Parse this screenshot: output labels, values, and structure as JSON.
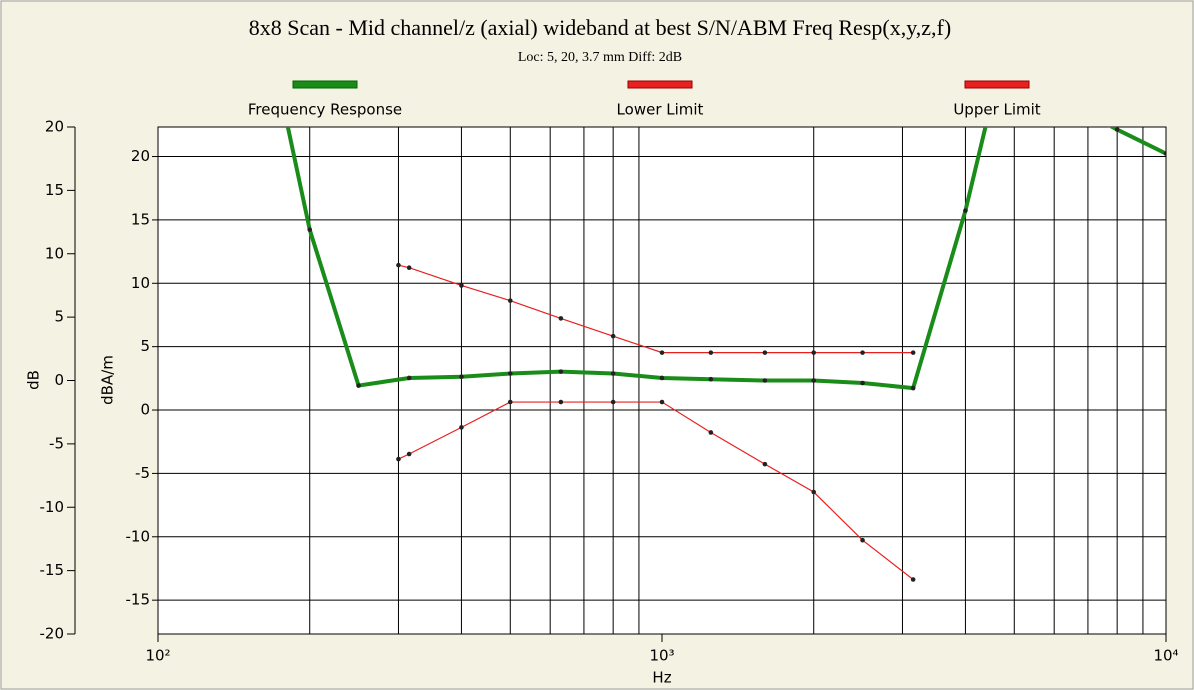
{
  "chart_data": {
    "type": "line",
    "title": "8x8 Scan - Mid channel/z (axial) wideband at best S/N/ABM Freq Resp(x,y,z,f)",
    "subtitle": "Loc: 5, 20, 3.7 mm Diff: 2dB",
    "x_label": "Hz",
    "y_label": "dB",
    "y2_label": "dBA/m",
    "log_x": true,
    "grid": true,
    "legend": "top",
    "xlim": [
      100,
      10000
    ],
    "xticks": [
      {
        "value": 100,
        "label": "10²"
      },
      {
        "value": 1000,
        "label": "10³"
      },
      {
        "value": 10000,
        "label": "10⁴"
      }
    ],
    "xminor": [
      200,
      300,
      400,
      500,
      600,
      700,
      800,
      900,
      2000,
      3000,
      4000,
      5000,
      6000,
      7000,
      8000,
      9000
    ],
    "ylim": [
      -20,
      20
    ],
    "yticks": [
      -20,
      -15,
      -10,
      -5,
      0,
      5,
      10,
      15,
      20
    ],
    "y2lim": [
      -17.67,
      22.33
    ],
    "y2ticks": [
      -15,
      -10,
      -5,
      0,
      5,
      10,
      15,
      20
    ],
    "series": [
      {
        "name": "Frequency Response",
        "color": "#1a8c1a",
        "x": [
          160,
          200,
          250,
          315,
          400,
          500,
          630,
          800,
          1000,
          1250,
          1600,
          2000,
          2500,
          3150,
          4000,
          5000,
          6300,
          8000,
          10000
        ],
        "values": [
          30,
          11.9,
          -0.4,
          0.2,
          0.3,
          0.55,
          0.7,
          0.55,
          0.2,
          0.1,
          0,
          0,
          -0.2,
          -0.6,
          13.4,
          29.5,
          22,
          19.8,
          17.9
        ]
      },
      {
        "name": "Lower Limit",
        "color": "#e82020",
        "x": [
          300,
          315,
          400,
          500,
          630,
          800,
          1000,
          1250,
          1600,
          2000,
          2500,
          3150
        ],
        "values": [
          -6.2,
          -5.8,
          -3.7,
          -1.7,
          -1.7,
          -1.7,
          -1.7,
          -4.1,
          -6.6,
          -8.8,
          -12.6,
          -15.7
        ]
      },
      {
        "name": "Upper Limit",
        "color": "#e82020",
        "x": [
          300,
          315,
          400,
          500,
          630,
          800,
          1000,
          1250,
          1600,
          2000,
          2500,
          3150
        ],
        "values": [
          9.1,
          8.9,
          7.5,
          6.3,
          4.9,
          3.5,
          2.2,
          2.2,
          2.2,
          2.2,
          2.2,
          2.2
        ]
      }
    ]
  }
}
